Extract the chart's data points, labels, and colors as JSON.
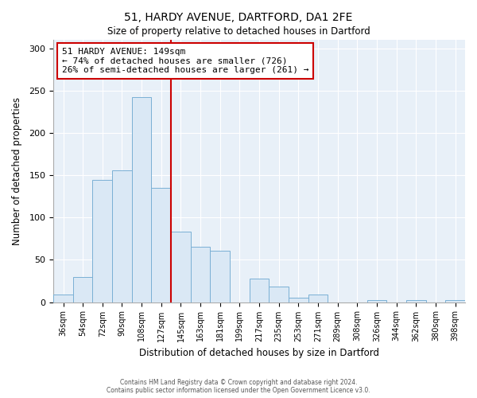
{
  "title": "51, HARDY AVENUE, DARTFORD, DA1 2FE",
  "subtitle": "Size of property relative to detached houses in Dartford",
  "xlabel": "Distribution of detached houses by size in Dartford",
  "ylabel": "Number of detached properties",
  "bar_labels": [
    "36sqm",
    "54sqm",
    "72sqm",
    "90sqm",
    "108sqm",
    "127sqm",
    "145sqm",
    "163sqm",
    "181sqm",
    "199sqm",
    "217sqm",
    "235sqm",
    "253sqm",
    "271sqm",
    "289sqm",
    "308sqm",
    "326sqm",
    "344sqm",
    "362sqm",
    "380sqm",
    "398sqm"
  ],
  "bar_values": [
    9,
    30,
    144,
    156,
    242,
    135,
    83,
    65,
    61,
    0,
    28,
    18,
    5,
    9,
    0,
    0,
    2,
    0,
    2,
    0,
    2
  ],
  "bar_color": "#dae8f5",
  "bar_edge_color": "#7ab0d4",
  "vline_color": "#cc0000",
  "annotation_title": "51 HARDY AVENUE: 149sqm",
  "annotation_line1": "← 74% of detached houses are smaller (726)",
  "annotation_line2": "26% of semi-detached houses are larger (261) →",
  "annotation_box_color": "#ffffff",
  "annotation_box_edge": "#cc0000",
  "ylim": [
    0,
    310
  ],
  "yticks": [
    0,
    50,
    100,
    150,
    200,
    250,
    300
  ],
  "bg_color": "#e8f0f8",
  "grid_color": "#ffffff",
  "footer1": "Contains HM Land Registry data © Crown copyright and database right 2024.",
  "footer2": "Contains public sector information licensed under the Open Government Licence v3.0."
}
